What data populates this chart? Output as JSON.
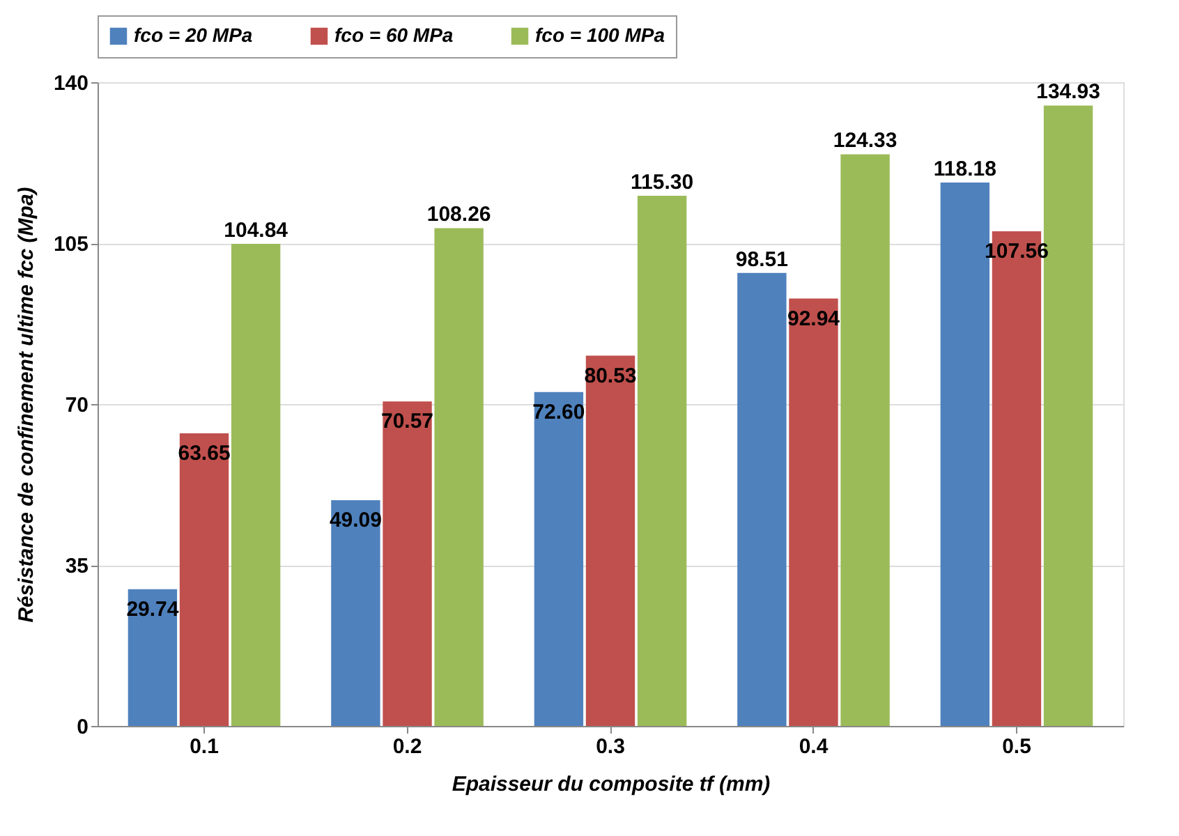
{
  "chart_data": {
    "type": "bar",
    "xlabel": "Epaisseur du composite  tf (mm)",
    "ylabel": "Résistance de confinement ultime fcc  (Mpa)",
    "categories": [
      "0.1",
      "0.2",
      "0.3",
      "0.4",
      "0.5"
    ],
    "series": [
      {
        "name": "fco = 20 MPa",
        "color": "#4f81bd",
        "values": [
          29.74,
          49.09,
          72.6,
          98.51,
          118.18
        ],
        "value_labels": [
          "29.74",
          "49.09",
          "72.60",
          "98.51",
          "118.18"
        ]
      },
      {
        "name": "fco = 60 MPa",
        "color": "#c0504d",
        "values": [
          63.65,
          70.57,
          80.53,
          92.94,
          107.56
        ],
        "value_labels": [
          "63.65",
          "70.57",
          "80.53",
          "92.94",
          "107.56"
        ]
      },
      {
        "name": "fco = 100 MPa",
        "color": "#9bbb59",
        "values": [
          104.84,
          108.26,
          115.3,
          124.33,
          134.93
        ],
        "value_labels": [
          "104.84",
          "108.26",
          "115.30",
          "124.33",
          "134.93"
        ]
      }
    ],
    "ylim": [
      0,
      140
    ],
    "yticks": [
      0,
      35,
      70,
      105,
      140
    ],
    "grid": "y",
    "legend": "top"
  }
}
